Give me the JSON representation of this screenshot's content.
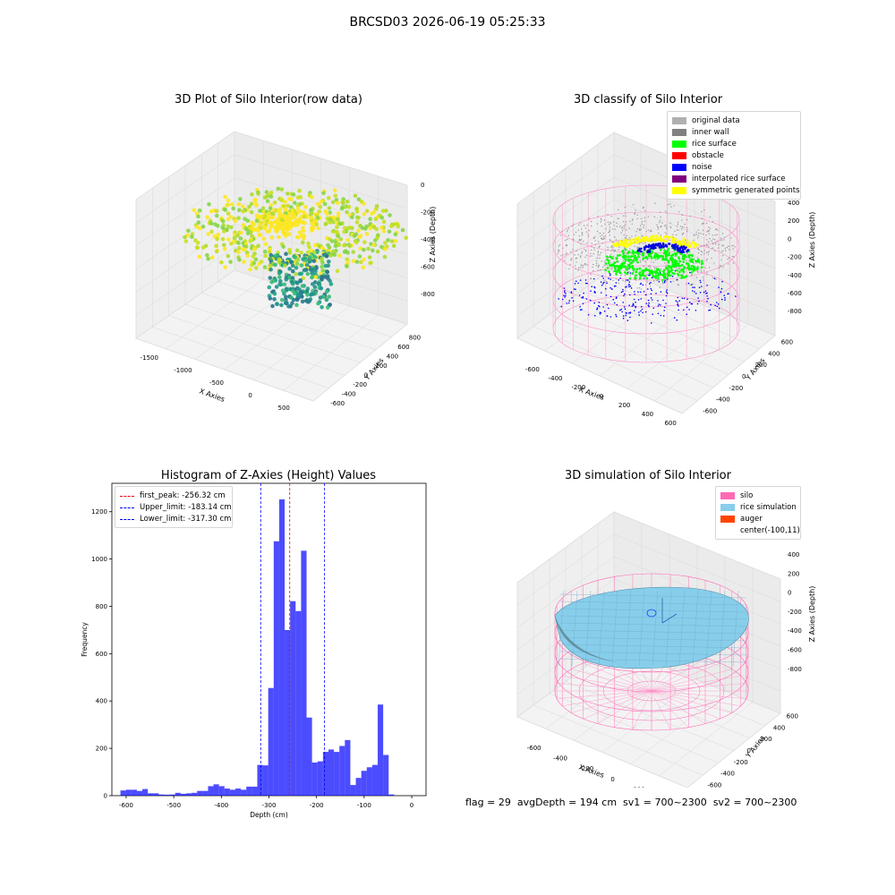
{
  "suptitle": "BRCSD03 2026-06-19 05:25:33",
  "status_line": "flag = 29  avgDepth = 194 cm  sv1 = 700~2300  sv2 = 700~2300",
  "panel_raw": {
    "title": "3D Plot of Silo Interior(row data)",
    "xlabel": "X Axies",
    "ylabel": "Y Axies",
    "zlabel": "Z Axies (Depth)",
    "x_ticks": [
      "-1500",
      "-1000",
      "-500",
      "0",
      "500"
    ],
    "y_ticks": [
      "-600",
      "-400",
      "-200",
      "0",
      "200",
      "400",
      "600",
      "800"
    ],
    "z_ticks": [
      "0",
      "-200",
      "-400",
      "-600",
      "-800"
    ]
  },
  "panel_classify": {
    "title": "3D classify of Silo Interior",
    "xlabel": "X Axies",
    "ylabel": "Y Axies",
    "zlabel": "Z Axies (Depth)",
    "x_ticks": [
      "-600",
      "-400",
      "-200",
      "0",
      "200",
      "400",
      "600"
    ],
    "y_ticks": [
      "-600",
      "-400",
      "-200",
      "0",
      "200",
      "400",
      "600"
    ],
    "z_ticks": [
      "400",
      "200",
      "0",
      "-200",
      "-400",
      "-600",
      "-800"
    ],
    "legend": [
      {
        "label": "original data",
        "color": "#b0b0b0"
      },
      {
        "label": "inner wall",
        "color": "#808080"
      },
      {
        "label": "rice surface",
        "color": "#00ff00"
      },
      {
        "label": "obstacle",
        "color": "#ff0000"
      },
      {
        "label": "noise",
        "color": "#0000ff"
      },
      {
        "label": "interpolated rice surface",
        "color": "#800080"
      },
      {
        "label": "symmetric generated points",
        "color": "#ffff00"
      }
    ]
  },
  "panel_sim": {
    "title": "3D simulation of Silo Interior",
    "xlabel": "X Axies",
    "ylabel": "Y Axies",
    "zlabel": "Z Axies (Depth)",
    "x_ticks": [
      "-600",
      "-400",
      "-200",
      "0",
      "200",
      "400"
    ],
    "y_ticks": [
      "-600",
      "-400",
      "-200",
      "0",
      "200",
      "400",
      "600"
    ],
    "z_ticks": [
      "400",
      "200",
      "0",
      "-200",
      "-400",
      "-600",
      "-800"
    ],
    "legend": [
      {
        "label": "silo",
        "color": "#ff69b4"
      },
      {
        "label": "rice simulation",
        "color": "#87ceeb"
      },
      {
        "label": "auger",
        "color": "#ff4500"
      },
      {
        "label": "center(-100,11)",
        "color": ""
      }
    ]
  },
  "chart_data": {
    "type": "bar",
    "title": "Histogram of Z-Axies (Height) Values",
    "xlabel": "Depth (cm)",
    "ylabel": "Frequency",
    "xlim": [
      -630,
      30
    ],
    "ylim": [
      0,
      1320
    ],
    "x_ticks": [
      -600,
      -500,
      -400,
      -300,
      -200,
      -100,
      0
    ],
    "y_ticks": [
      0,
      200,
      400,
      600,
      800,
      1000,
      1200
    ],
    "bar_color": "#0000ff",
    "bin_edges": [
      -612,
      -600.5,
      -589,
      -577.5,
      -566,
      -554.5,
      -543,
      -531.5,
      -520,
      -508.5,
      -497,
      -485.5,
      -474,
      -462.5,
      -451,
      -439.5,
      -428,
      -416.5,
      -405,
      -393.5,
      -382,
      -370.5,
      -359,
      -347.5,
      -336,
      -324.5,
      -313,
      -301.5,
      -290,
      -278.5,
      -267,
      -255.5,
      -244,
      -232.5,
      -221,
      -209.5,
      -198,
      -186.5,
      -175,
      -163.5,
      -152,
      -140.5,
      -129,
      -117.5,
      -106,
      -94.5,
      -83,
      -71.5,
      -60,
      -48.5,
      -37,
      -25.5,
      -14,
      -2.5
    ],
    "counts": [
      22,
      25,
      25,
      20,
      28,
      10,
      10,
      5,
      4,
      5,
      12,
      8,
      10,
      12,
      20,
      20,
      40,
      48,
      40,
      30,
      25,
      30,
      25,
      38,
      38,
      130,
      128,
      455,
      1075,
      1252,
      700,
      822,
      780,
      1035,
      330,
      140,
      145,
      185,
      195,
      185,
      210,
      235,
      45,
      75,
      105,
      120,
      130,
      385,
      172,
      5,
      0,
      0,
      0
    ],
    "lines": [
      {
        "label": "first_peak: -256.32 cm",
        "x": -256.32,
        "color": "#ff0000"
      },
      {
        "label": "Upper_limit: -183.14 cm",
        "x": -183.14,
        "color": "#0000ff"
      },
      {
        "label": "Lower_limit: -317.30 cm",
        "x": -317.3,
        "color": "#0000ff"
      }
    ]
  }
}
